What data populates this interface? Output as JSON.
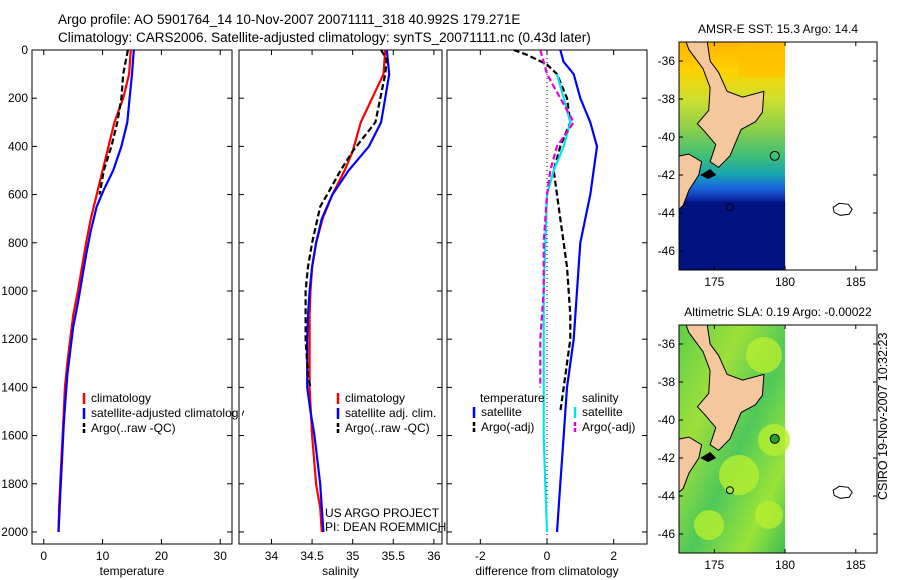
{
  "header": {
    "line1": "Argo profile: AO 5901764_14 10-Nov-2007 20071111_318 40.992S 179.271E",
    "line2": "Climatology: CARS2006. Satellite-adjusted climatology: synTS_20071111.nc (0.43d later)"
  },
  "credit": "CSIRO 19-Nov-2007 10:32:23",
  "colors": {
    "red": "#ff0000",
    "blue": "#0000ff",
    "black": "#000000",
    "cyan": "#00e5ee",
    "magenta": "#e000e0",
    "land": "#f5c79d"
  },
  "chart_data": [
    {
      "type": "line",
      "panel": "temperature",
      "xlabel": "temperature",
      "ylabel": "",
      "xlim": [
        -2,
        32
      ],
      "ylim": [
        2050,
        0
      ],
      "xticks": [
        "0",
        "10",
        "20",
        "30"
      ],
      "xtick_values": [
        0,
        10,
        20,
        30
      ],
      "yticks": [
        "0",
        "200",
        "400",
        "600",
        "800",
        "1000",
        "1200",
        "1400",
        "1600",
        "1800",
        "2000"
      ],
      "ytick_values": [
        0,
        200,
        400,
        600,
        800,
        1000,
        1200,
        1400,
        1600,
        1800,
        2000
      ],
      "legend": {
        "entries": [
          "climatology",
          "satellite-adjusted climatology",
          "Argo(..raw -QC)"
        ]
      },
      "series": [
        {
          "name": "climatology",
          "color": "red",
          "dash": "",
          "points": [
            [
              14.8,
              0
            ],
            [
              14.5,
              100
            ],
            [
              13.5,
              200
            ],
            [
              12,
              300
            ],
            [
              11,
              400
            ],
            [
              10,
              500
            ],
            [
              9,
              600
            ],
            [
              8,
              700
            ],
            [
              7.2,
              800
            ],
            [
              6.5,
              900
            ],
            [
              5.8,
              1000
            ],
            [
              5,
              1100
            ],
            [
              4.5,
              1200
            ],
            [
              4,
              1300
            ],
            [
              3.6,
              1400
            ],
            [
              3.4,
              1500
            ],
            [
              3.2,
              1600
            ],
            [
              3,
              1700
            ],
            [
              2.8,
              1800
            ],
            [
              2.6,
              1900
            ],
            [
              2.5,
              2000
            ]
          ]
        },
        {
          "name": "satellite-adjusted climatology",
          "color": "blue",
          "dash": "",
          "points": [
            [
              15.3,
              0
            ],
            [
              15,
              100
            ],
            [
              14.6,
              200
            ],
            [
              14.2,
              300
            ],
            [
              13.2,
              400
            ],
            [
              11.8,
              500
            ],
            [
              10.2,
              580
            ],
            [
              9,
              650
            ],
            [
              8,
              750
            ],
            [
              7.2,
              850
            ],
            [
              6.5,
              950
            ],
            [
              5.8,
              1050
            ],
            [
              5,
              1150
            ],
            [
              4.5,
              1250
            ],
            [
              4,
              1350
            ],
            [
              3.7,
              1450
            ],
            [
              3.4,
              1550
            ],
            [
              3.2,
              1650
            ],
            [
              3,
              1750
            ],
            [
              2.8,
              1850
            ],
            [
              2.6,
              1950
            ],
            [
              2.5,
              2000
            ]
          ]
        },
        {
          "name": "Argo(..raw -QC)",
          "color": "black",
          "dash": "6,3",
          "points": [
            [
              14.3,
              0
            ],
            [
              13.5,
              100
            ],
            [
              13.2,
              200
            ],
            [
              12.5,
              300
            ],
            [
              11.5,
              400
            ],
            [
              10.2,
              500
            ],
            [
              9.5,
              600
            ]
          ]
        }
      ]
    },
    {
      "type": "line",
      "panel": "salinity",
      "xlabel": "salinity",
      "ylabel": "",
      "xlim": [
        33.6,
        36.1
      ],
      "ylim": [
        2050,
        0
      ],
      "xticks": [
        "34",
        "34.5",
        "35",
        "35.5",
        "36"
      ],
      "xtick_values": [
        34,
        34.5,
        35,
        35.5,
        36
      ],
      "yticks": [],
      "ytick_values": [],
      "legend": {
        "entries": [
          "climatology",
          "satellite adj. clim.",
          "Argo(..raw -QC)"
        ]
      },
      "annotations": [
        "US ARGO PROJECT",
        "PI: DEAN ROEMMICH"
      ],
      "series": [
        {
          "name": "climatology",
          "color": "red",
          "dash": "",
          "points": [
            [
              35.4,
              0
            ],
            [
              35.38,
              100
            ],
            [
              35.1,
              300
            ],
            [
              35,
              420
            ],
            [
              34.9,
              500
            ],
            [
              34.75,
              600
            ],
            [
              34.63,
              700
            ],
            [
              34.55,
              800
            ],
            [
              34.5,
              900
            ],
            [
              34.48,
              1000
            ],
            [
              34.47,
              1100
            ],
            [
              34.47,
              1200
            ],
            [
              34.47,
              1400
            ],
            [
              34.5,
              1600
            ],
            [
              34.55,
              1800
            ],
            [
              34.6,
              1900
            ],
            [
              34.62,
              2000
            ]
          ]
        },
        {
          "name": "satellite adj. clim.",
          "color": "blue",
          "dash": "",
          "points": [
            [
              35.42,
              0
            ],
            [
              35.45,
              100
            ],
            [
              35.4,
              200
            ],
            [
              35.35,
              300
            ],
            [
              35.2,
              400
            ],
            [
              34.95,
              500
            ],
            [
              34.75,
              600
            ],
            [
              34.62,
              700
            ],
            [
              34.55,
              800
            ],
            [
              34.5,
              900
            ],
            [
              34.47,
              1000
            ],
            [
              34.45,
              1100
            ],
            [
              34.44,
              1200
            ],
            [
              34.44,
              1300
            ],
            [
              34.44,
              1400
            ],
            [
              34.48,
              1500
            ],
            [
              34.53,
              1600
            ],
            [
              34.6,
              1800
            ],
            [
              34.64,
              2000
            ]
          ]
        },
        {
          "name": "Argo(..raw -QC)",
          "color": "black",
          "dash": "6,3",
          "points": [
            [
              35.35,
              0
            ],
            [
              35.42,
              40
            ],
            [
              35.4,
              100
            ],
            [
              35.28,
              300
            ],
            [
              35.0,
              420
            ],
            [
              34.85,
              500
            ],
            [
              34.72,
              580
            ],
            [
              34.6,
              650
            ],
            [
              34.5,
              800
            ],
            [
              34.45,
              900
            ],
            [
              34.42,
              1000
            ],
            [
              34.42,
              1200
            ],
            [
              34.45,
              1350
            ],
            [
              34.48,
              1400
            ]
          ]
        }
      ]
    },
    {
      "type": "line",
      "panel": "difference",
      "xlabel": "difference from climatology",
      "ylabel": "",
      "xlim": [
        -3,
        3
      ],
      "ylim": [
        2050,
        0
      ],
      "xticks": [
        "-2",
        "0",
        "2"
      ],
      "xtick_values": [
        -2,
        0,
        2
      ],
      "yticks": [],
      "ytick_values": [],
      "legend": {
        "titles": [
          "temperature",
          "salinity"
        ],
        "entries": [
          "satellite",
          "Argo(-adj)",
          "satellite",
          "Argo(-adj)"
        ]
      },
      "series": [
        {
          "name": "temperature satellite",
          "color": "blue",
          "dash": "",
          "points": [
            [
              0.4,
              0
            ],
            [
              0.5,
              50
            ],
            [
              0.8,
              100
            ],
            [
              1.0,
              200
            ],
            [
              1.3,
              300
            ],
            [
              1.5,
              400
            ],
            [
              1.3,
              600
            ],
            [
              1.0,
              800
            ],
            [
              0.9,
              1000
            ],
            [
              0.8,
              1200
            ],
            [
              0.6,
              1400
            ],
            [
              0.5,
              1600
            ],
            [
              0.4,
              1800
            ],
            [
              0.3,
              2000
            ]
          ]
        },
        {
          "name": "temperature Argo(-adj)",
          "color": "black",
          "dash": "6,3",
          "points": [
            [
              -1,
              0
            ],
            [
              -0.6,
              20
            ],
            [
              0,
              60
            ],
            [
              0.3,
              100
            ],
            [
              0.6,
              200
            ],
            [
              0.7,
              300
            ],
            [
              0.4,
              400
            ],
            [
              0.2,
              500
            ],
            [
              0.4,
              700
            ],
            [
              0.6,
              900
            ],
            [
              0.7,
              1100
            ],
            [
              0.7,
              1200
            ],
            [
              0.6,
              1300
            ],
            [
              0.5,
              1400
            ],
            [
              0.4,
              1500
            ]
          ]
        },
        {
          "name": "salinity satellite",
          "color": "cyan",
          "dash": "",
          "points": [
            [
              0.3,
              100
            ],
            [
              0.5,
              200
            ],
            [
              0.7,
              300
            ],
            [
              0.5,
              400
            ],
            [
              0.2,
              500
            ],
            [
              0,
              600
            ],
            [
              -0.05,
              800
            ],
            [
              -0.1,
              1000
            ],
            [
              -0.1,
              1200
            ],
            [
              -0.1,
              1400
            ],
            [
              -0.1,
              1600
            ],
            [
              -0.05,
              1800
            ],
            [
              0,
              2000
            ]
          ]
        },
        {
          "name": "salinity Argo(-adj)",
          "color": "magenta",
          "dash": "6,3",
          "points": [
            [
              -0.2,
              0
            ],
            [
              -0.1,
              50
            ],
            [
              0,
              100
            ],
            [
              0.4,
              200
            ],
            [
              0.8,
              300
            ],
            [
              0.3,
              400
            ],
            [
              0.1,
              500
            ],
            [
              0,
              600
            ],
            [
              -0.1,
              800
            ],
            [
              -0.1,
              1000
            ],
            [
              -0.2,
              1200
            ],
            [
              -0.2,
              1400
            ]
          ]
        }
      ]
    },
    {
      "type": "heatmap",
      "panel": "map-sst",
      "title": "AMSR-E SST: 15.3 Argo: 14.4",
      "xlim": [
        172.5,
        186.5
      ],
      "ylim": [
        -47,
        -35
      ],
      "xticks": [
        "175",
        "180",
        "185"
      ],
      "xtick_values": [
        175,
        180,
        185
      ],
      "yticks": [
        "-36",
        "-38",
        "-40",
        "-42",
        "-44",
        "-46"
      ],
      "ytick_values": [
        -36,
        -38,
        -40,
        -42,
        -44,
        -46
      ],
      "float_position": [
        179.271,
        -40.992
      ]
    },
    {
      "type": "heatmap",
      "panel": "map-sla",
      "title": "Altimetric SLA: 0.19 Argo: -0.00022",
      "xlim": [
        172.5,
        186.5
      ],
      "ylim": [
        -47,
        -35
      ],
      "xticks": [
        "175",
        "180",
        "185"
      ],
      "xtick_values": [
        175,
        180,
        185
      ],
      "yticks": [
        "-36",
        "-38",
        "-40",
        "-42",
        "-44",
        "-46"
      ],
      "ytick_values": [
        -36,
        -38,
        -40,
        -42,
        -44,
        -46
      ],
      "float_position": [
        179.271,
        -40.992
      ]
    }
  ]
}
